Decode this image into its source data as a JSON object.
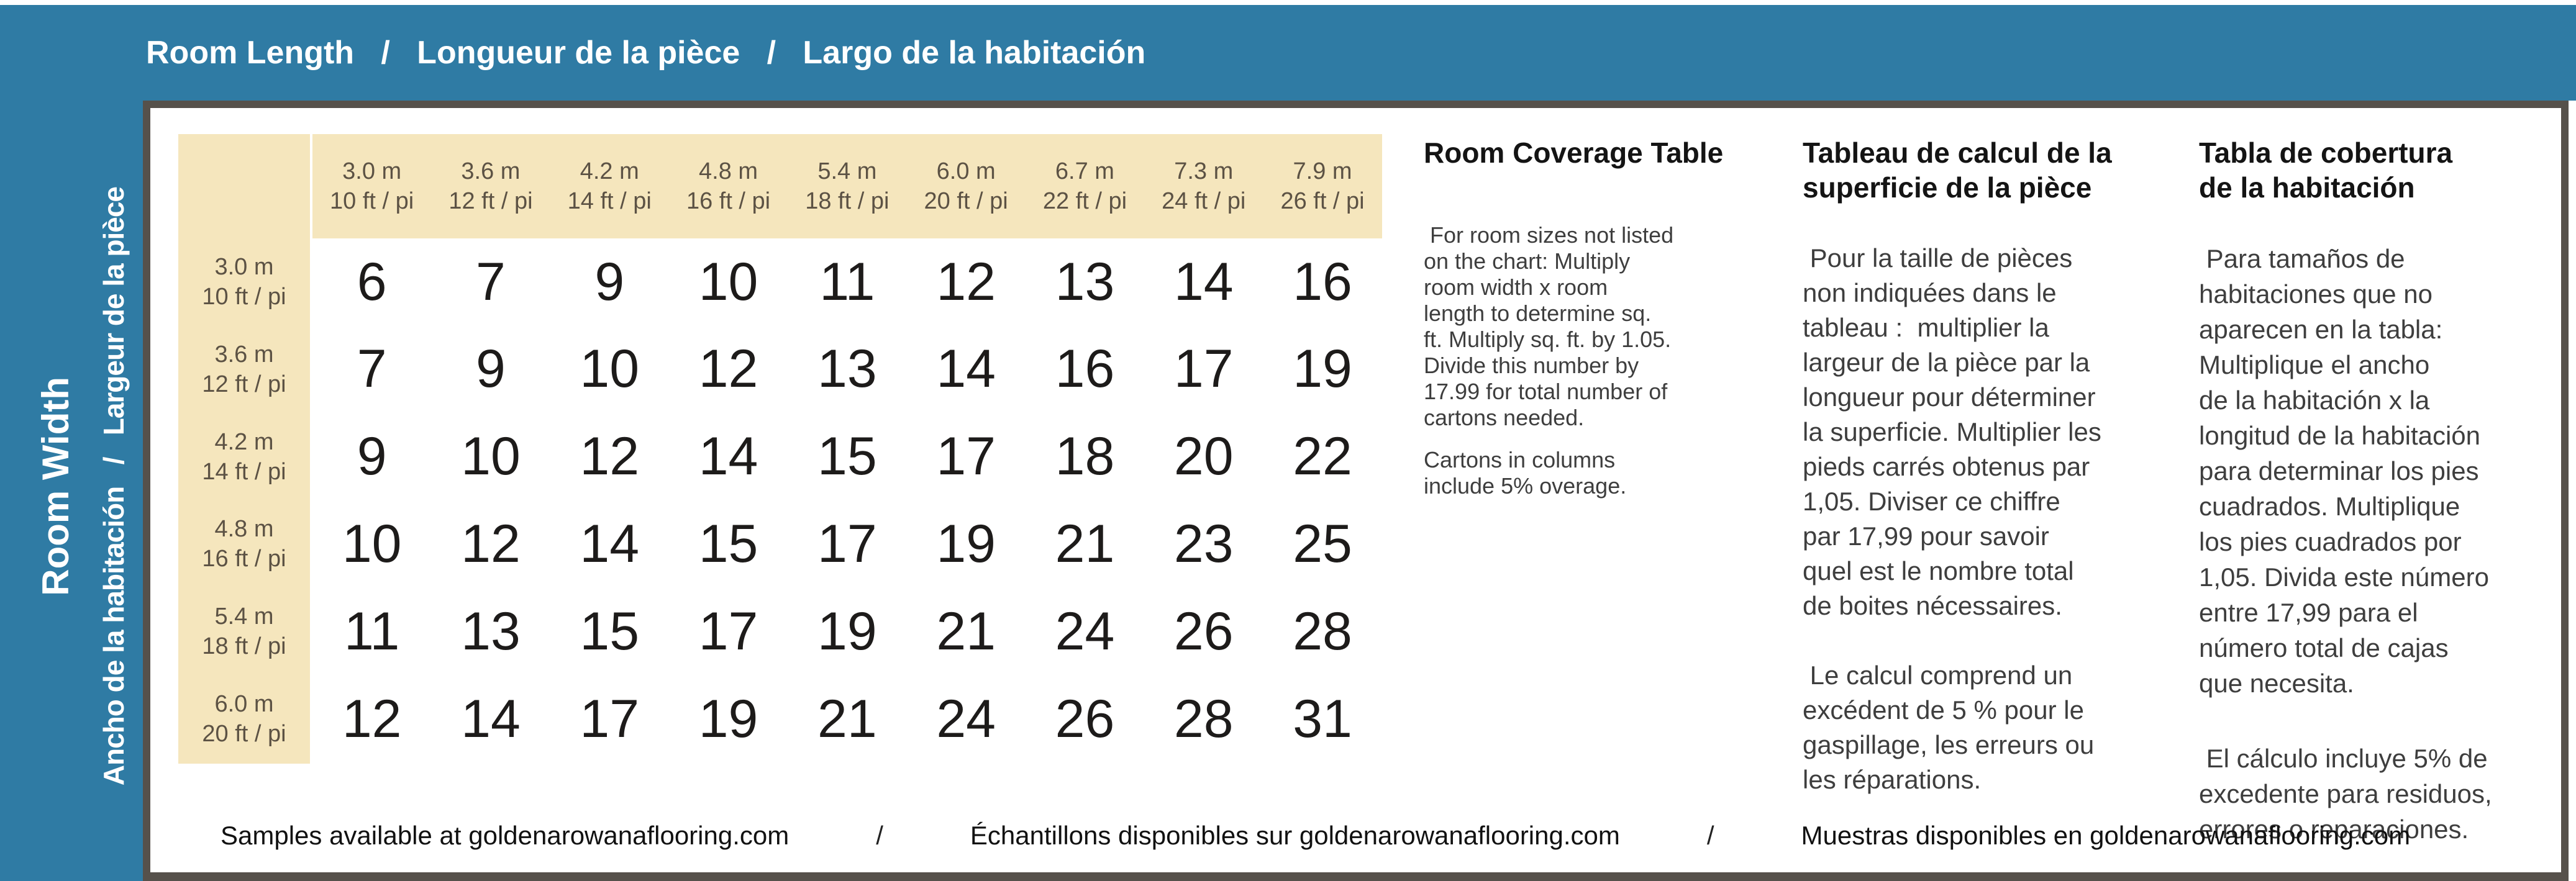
{
  "header": {
    "title": "Room Length   /   Longueur de la pièce   /   Largo de la habitación"
  },
  "sidebar": {
    "line1": "Room Width",
    "line2": "Ancho de la habitación   /   Largeur de la pièce"
  },
  "table": {
    "columns": [
      "3.0 m\n10 ft / pi",
      "3.6 m\n12 ft / pi",
      "4.2 m\n14 ft / pi",
      "4.8 m\n16 ft / pi",
      "5.4 m\n18 ft / pi",
      "6.0 m\n20 ft / pi",
      "6.7 m\n22 ft / pi",
      "7.3 m\n24 ft / pi",
      "7.9 m\n26 ft / pi"
    ],
    "rows": [
      "3.0 m\n10 ft / pi",
      "3.6 m\n12 ft / pi",
      "4.2 m\n14 ft / pi",
      "4.8 m\n16 ft / pi",
      "5.4 m\n18 ft / pi",
      "6.0 m\n20 ft / pi"
    ],
    "values": [
      [
        6,
        7,
        9,
        10,
        11,
        12,
        13,
        14,
        16
      ],
      [
        7,
        9,
        10,
        12,
        13,
        14,
        16,
        17,
        19
      ],
      [
        9,
        10,
        12,
        14,
        15,
        17,
        18,
        20,
        22
      ],
      [
        10,
        12,
        14,
        15,
        17,
        19,
        21,
        23,
        25
      ],
      [
        11,
        13,
        15,
        17,
        19,
        21,
        24,
        26,
        28
      ],
      [
        12,
        14,
        17,
        19,
        21,
        24,
        26,
        28,
        31
      ]
    ]
  },
  "sections": [
    {
      "title": "Room Coverage Table",
      "body": " For room sizes not listed\non the chart: Multiply\nroom width x room\nlength to determine sq.\nft. Multiply sq. ft. by 1.05.\nDivide this number by\n17.99 for total number of\ncartons needed.",
      "note": "Cartons in columns\ninclude 5% overage."
    },
    {
      "title": "Tableau de calcul de la\nsuperficie de la pièce",
      "body": " Pour la taille de pièces\nnon indiquées dans le\ntableau :  multiplier la\nlargeur de la pièce par la\nlongueur pour déterminer\nla superficie. Multiplier les\npieds carrés obtenus par\n1,05. Diviser ce chiffre\npar 17,99 pour savoir\nquel est le nombre total\nde boites nécessaires.",
      "note": " Le calcul comprend un\nexcédent de 5 % pour le\ngaspillage, les erreurs ou\nles réparations."
    },
    {
      "title": "Tabla de cobertura\nde la habitación",
      "body": " Para tamaños de\nhabitaciones que no\naparecen en la tabla:\nMultiplique el ancho\nde la habitación x la\nlongitud de la habitación\npara determinar los pies\ncuadrados. Multiplique\nlos pies cuadrados por\n1,05. Divida este número\nentre 17,99 para el\nnúmero total de cajas\nque necesita.",
      "note": " El cálculo incluye 5% de\nexcedente para residuos,\nerrores o reparaciones."
    }
  ],
  "footer": {
    "items": [
      "Samples available at goldenarowanaflooring.com",
      "/",
      "Échantillons disponibles sur goldenarowanaflooring.com",
      "/",
      "Muestras disponibles en goldenarowanaflooring.com"
    ]
  },
  "colors": {
    "blue": "#2F7BA4",
    "cream": "#F5E6BD",
    "border": "#56514B",
    "label_text": "#5C5244",
    "number_text": "#1D1B1A",
    "body_text": "#3E3E3E"
  }
}
